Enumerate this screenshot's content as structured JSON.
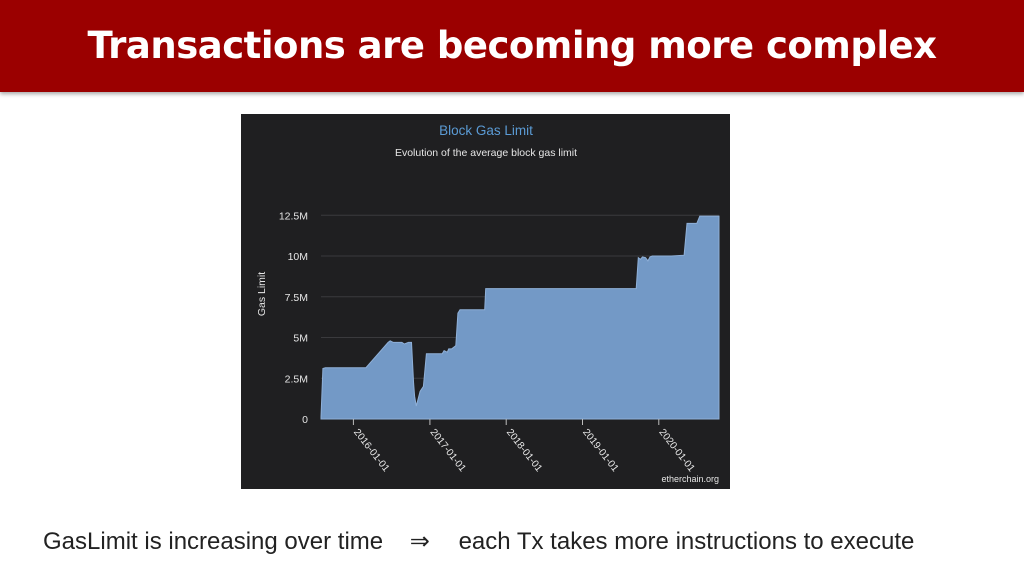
{
  "slide": {
    "title": "Transactions are becoming more complex",
    "caption_left": "GasLimit is increasing over time",
    "caption_arrow": "⇒",
    "caption_right": "each Tx takes more instructions to execute"
  },
  "colors": {
    "title_bar": "#9b0000",
    "chart_background": "#1f1f21",
    "area_fill": "#7399c6",
    "chart_title": "#5b9bd5"
  },
  "chart_data": {
    "type": "area",
    "title": "Block Gas Limit",
    "subtitle": "Evolution of the average block gas limit",
    "ylabel": "Gas Limit",
    "xlabel": "",
    "source": "etherchain.org",
    "y_ticks": [
      {
        "value": 0,
        "label": "0"
      },
      {
        "value": 2500000,
        "label": "2.5M"
      },
      {
        "value": 5000000,
        "label": "5M"
      },
      {
        "value": 7500000,
        "label": "7.5M"
      },
      {
        "value": 10000000,
        "label": "10M"
      },
      {
        "value": 12500000,
        "label": "12.5M"
      }
    ],
    "x_ticks": [
      "2016-01-01",
      "2017-01-01",
      "2018-01-01",
      "2019-01-01",
      "2020-01-01"
    ],
    "xlim": [
      "2015-07-30",
      "2020-10-15"
    ],
    "ylim": [
      0,
      13500000
    ],
    "grid": true,
    "series": [
      {
        "x": [
          "2015-07-30",
          "2015-08-08",
          "2015-08-20",
          "2015-12-31",
          "2016-01-25",
          "2016-03-01",
          "2016-06-15",
          "2016-06-25",
          "2016-07-10",
          "2016-07-20",
          "2016-08-20",
          "2016-09-01",
          "2016-09-20",
          "2016-10-05",
          "2016-10-15",
          "2016-10-20",
          "2016-10-28",
          "2016-11-15",
          "2016-12-01",
          "2016-12-15",
          "2017-03-01",
          "2017-03-10",
          "2017-03-25",
          "2017-04-01",
          "2017-04-15",
          "2017-04-25",
          "2017-05-05",
          "2017-05-15",
          "2017-05-25",
          "2017-06-10",
          "2017-06-15",
          "2017-06-20",
          "2017-09-20",
          "2017-09-25",
          "2017-12-10",
          "2017-12-15",
          "2018-06-01",
          "2019-06-01",
          "2019-09-15",
          "2019-09-25",
          "2019-10-05",
          "2019-10-15",
          "2019-10-30",
          "2019-11-10",
          "2019-11-20",
          "2019-12-01",
          "2019-12-15",
          "2019-12-31",
          "2020-03-01",
          "2020-05-01",
          "2020-05-15",
          "2020-07-01",
          "2020-07-15",
          "2020-10-15"
        ],
        "y": [
          150000,
          3100000,
          3140000,
          3140000,
          3150000,
          3150000,
          4700000,
          4800000,
          4700000,
          4700000,
          4700000,
          4600000,
          4700000,
          4700000,
          2200000,
          1400000,
          800000,
          1700000,
          2000000,
          4000000,
          4000000,
          4200000,
          4100000,
          4300000,
          4300000,
          4400000,
          4500000,
          6500000,
          6700000,
          6700000,
          6700000,
          6700000,
          6700000,
          8000000,
          8000000,
          8000000,
          8000000,
          8000000,
          8000000,
          9900000,
          9800000,
          9950000,
          9900000,
          9700000,
          9950000,
          10000000,
          10000000,
          10000000,
          10000000,
          10050000,
          12000000,
          12000000,
          12450000,
          12450000
        ]
      }
    ]
  }
}
